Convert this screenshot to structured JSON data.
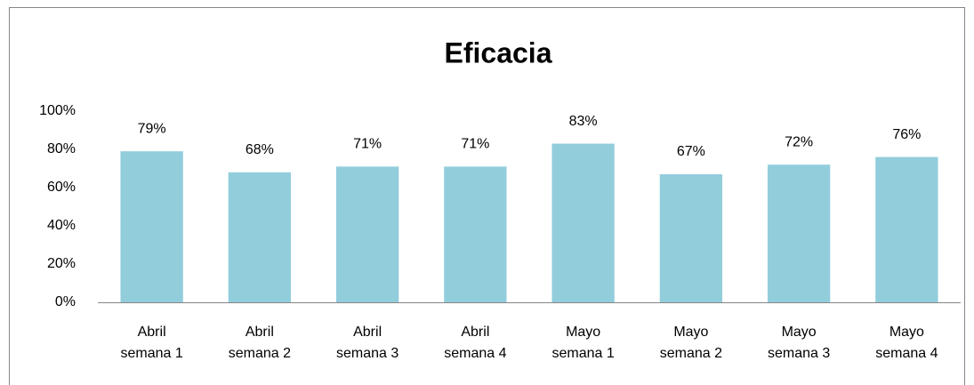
{
  "chart_data": {
    "type": "bar",
    "title": "Eficacia",
    "categories": [
      "Abril semana 1",
      "Abril semana 2",
      "Abril semana 3",
      "Abril semana 4",
      "Mayo semana 1",
      "Mayo semana 2",
      "Mayo semana 3",
      "Mayo semana 4"
    ],
    "values": [
      79,
      68,
      71,
      71,
      83,
      67,
      72,
      76
    ],
    "value_labels": [
      "79%",
      "68%",
      "71%",
      "71%",
      "83%",
      "67%",
      "72%",
      "76%"
    ],
    "color": "#92cddc",
    "ylim": [
      0,
      100
    ],
    "yticks": [
      {
        "value": 0,
        "label": "0%"
      },
      {
        "value": 20,
        "label": "20%"
      },
      {
        "value": 40,
        "label": "40%"
      },
      {
        "value": 60,
        "label": "60%"
      },
      {
        "value": 80,
        "label": "80%"
      },
      {
        "value": 100,
        "label": "100%"
      }
    ],
    "grid": false
  }
}
